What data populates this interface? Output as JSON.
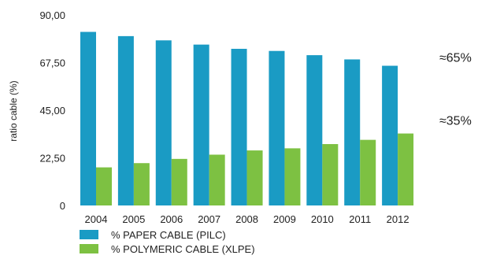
{
  "chart_data": {
    "type": "bar",
    "categories": [
      "2004",
      "2005",
      "2006",
      "2007",
      "2008",
      "2009",
      "2010",
      "2011",
      "2012"
    ],
    "series": [
      {
        "name": "% PAPER CABLE (PILC)",
        "color": "#1a9bc4",
        "values": [
          82,
          80,
          78,
          76,
          74,
          73,
          71,
          69,
          66
        ]
      },
      {
        "name": "% POLYMERIC CABLE (XLPE)",
        "color": "#7dc142",
        "values": [
          18,
          20,
          22,
          24,
          26,
          27,
          29,
          31,
          34
        ]
      }
    ],
    "title": "",
    "xlabel": "",
    "ylabel": "ratio cable (%)",
    "ylim": [
      0,
      90
    ],
    "yticks": [
      "0",
      "22,50",
      "45,00",
      "67,50",
      "90,00"
    ],
    "grid": false,
    "legend": "bottom-left",
    "annotations": [
      {
        "text": "≈65%",
        "near_series": 0
      },
      {
        "text": "≈35%",
        "near_series": 1
      }
    ]
  }
}
